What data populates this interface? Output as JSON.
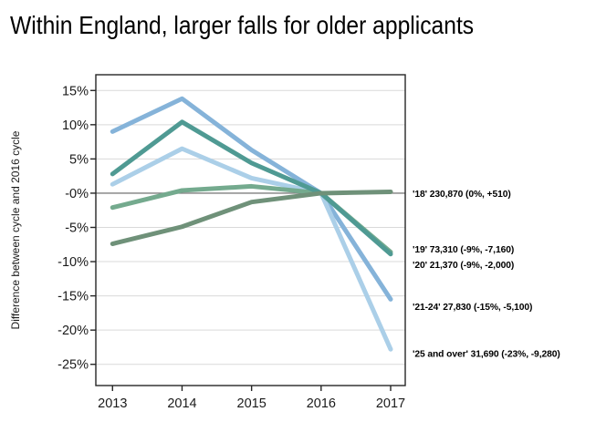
{
  "title": "Within England, larger falls for older applicants",
  "chart_data": {
    "type": "line",
    "title": "Within England, larger falls for older applicants",
    "ylabel": "Difference between cycle and 2016 cycle",
    "xlabel": "",
    "x_values": [
      2013,
      2014,
      2015,
      2016,
      2017
    ],
    "x_tick_labels": [
      "2013",
      "2014",
      "2015",
      "2016",
      "2017"
    ],
    "y_tick_values": [
      15,
      10,
      5,
      0,
      -5,
      -10,
      -15,
      -20,
      -25
    ],
    "y_tick_labels": [
      "15%",
      "10%",
      "5%",
      "-0%",
      "-5%",
      "-10%",
      "-15%",
      "-20%",
      "-25%"
    ],
    "ylim": [
      -28.1,
      17.3
    ],
    "xlim": [
      2012.76,
      2017.21
    ],
    "grid": "horizontal-only",
    "legend_position": "right-annotations",
    "colors": {
      "grid": "#d9d9d9",
      "zero_line": "#7f7f7f",
      "frame": "#262626",
      "tick_text": "#1a1a1a",
      "annotation_text": "#000000"
    },
    "series": [
      {
        "name": "18",
        "annotation": "'18' 230,870 (0%, +510)",
        "color": "#6f9179",
        "values": [
          -7.4,
          -4.9,
          -1.3,
          0,
          0.2
        ],
        "annotation_y": 0
      },
      {
        "name": "19",
        "annotation": "'19' 73,310 (-9%, -7,160)",
        "color": "#4f9a93",
        "values": [
          2.8,
          10.4,
          4.4,
          0,
          -8.9
        ],
        "annotation_y": -8.1
      },
      {
        "name": "20",
        "annotation": "'20' 21,370 (-9%, -2,000)",
        "color": "#74aa8e",
        "values": [
          -2.1,
          0.4,
          1.0,
          0,
          -8.6
        ],
        "annotation_y": -10.4
      },
      {
        "name": "21-24",
        "annotation": "'21-24' 27,830 (-15%, -5,100)",
        "color": "#85b3d9",
        "values": [
          9.0,
          13.8,
          6.3,
          0,
          -15.5
        ],
        "annotation_y": -16.5
      },
      {
        "name": "25 and over",
        "annotation": "'25 and over' 31,690 (-23%, -9,280)",
        "color": "#abcfe8",
        "values": [
          1.3,
          6.5,
          2.2,
          0,
          -22.8
        ],
        "annotation_y": -23.4
      }
    ],
    "draw_order": [
      3,
      4,
      2,
      1,
      0
    ]
  }
}
